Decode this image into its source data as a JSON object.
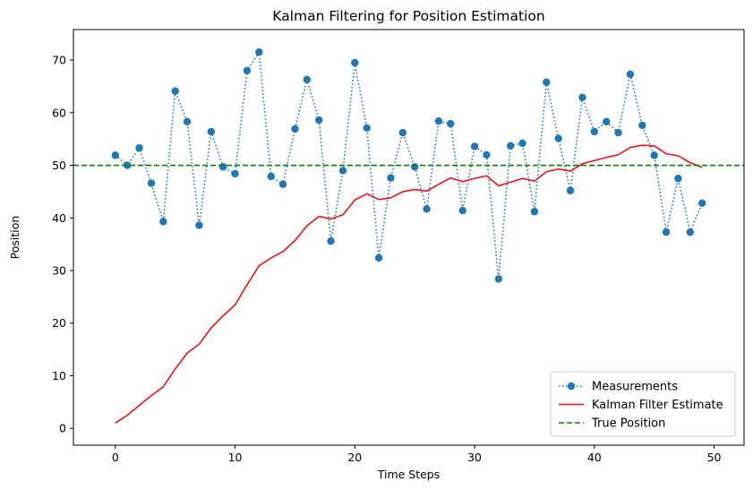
{
  "chart_data": {
    "type": "line",
    "title": "Kalman Filtering for Position Estimation",
    "xlabel": "Time Steps",
    "ylabel": "Position",
    "xlim": [
      -3.5,
      52.5
    ],
    "ylim": [
      -3.2,
      75.8
    ],
    "xticks": [
      0,
      10,
      20,
      30,
      40,
      50
    ],
    "yticks": [
      0,
      10,
      20,
      30,
      40,
      50,
      60,
      70
    ],
    "grid": false,
    "legend_position": "lower-right",
    "series": [
      {
        "name": "Measurements",
        "style": "dotted-markers",
        "color": "#1f77b4",
        "x": [
          0,
          1,
          2,
          3,
          4,
          5,
          6,
          7,
          8,
          9,
          10,
          11,
          12,
          13,
          14,
          15,
          16,
          17,
          18,
          19,
          20,
          21,
          22,
          23,
          24,
          25,
          26,
          27,
          28,
          29,
          30,
          31,
          32,
          33,
          34,
          35,
          36,
          37,
          38,
          39,
          40,
          41,
          42,
          43,
          44,
          45,
          46,
          47,
          48,
          49
        ],
        "values": [
          51.9,
          50.0,
          53.3,
          46.6,
          39.3,
          64.1,
          58.3,
          38.6,
          56.4,
          49.7,
          48.4,
          68.0,
          71.5,
          47.9,
          46.4,
          56.9,
          66.3,
          58.6,
          35.6,
          49.0,
          69.5,
          57.1,
          32.4,
          47.6,
          56.2,
          49.7,
          41.7,
          58.4,
          57.9,
          41.4,
          53.6,
          52.0,
          28.4,
          53.7,
          54.2,
          41.2,
          65.8,
          55.1,
          45.2,
          62.9,
          56.4,
          58.3,
          56.2,
          67.3,
          57.6,
          51.9,
          37.3,
          47.5,
          37.3,
          42.8
        ]
      },
      {
        "name": "Kalman Filter Estimate",
        "style": "solid",
        "color": "#e8141c",
        "x": [
          0,
          1,
          2,
          3,
          4,
          5,
          6,
          7,
          8,
          9,
          10,
          11,
          12,
          13,
          14,
          15,
          16,
          17,
          18,
          19,
          20,
          21,
          22,
          23,
          24,
          25,
          26,
          27,
          28,
          29,
          30,
          31,
          32,
          33,
          34,
          35,
          36,
          37,
          38,
          39,
          40,
          41,
          42,
          43,
          44,
          45,
          46,
          47,
          48,
          49
        ],
        "values": [
          1.0,
          2.5,
          4.4,
          6.2,
          7.9,
          11.3,
          14.3,
          16.0,
          19.1,
          21.4,
          23.5,
          27.3,
          30.9,
          32.4,
          33.6,
          35.7,
          38.5,
          40.3,
          39.8,
          40.6,
          43.4,
          44.6,
          43.5,
          43.8,
          45.0,
          45.4,
          45.1,
          46.4,
          47.6,
          46.9,
          47.5,
          48.0,
          46.1,
          46.8,
          47.5,
          47.0,
          48.8,
          49.3,
          48.9,
          50.3,
          50.9,
          51.5,
          52.0,
          53.4,
          53.8,
          53.7,
          52.2,
          51.8,
          50.5,
          49.6
        ]
      },
      {
        "name": "True Position",
        "style": "dashed",
        "color": "#008000",
        "x": [
          -3.5,
          52.5
        ],
        "values": [
          50,
          50
        ]
      }
    ]
  }
}
